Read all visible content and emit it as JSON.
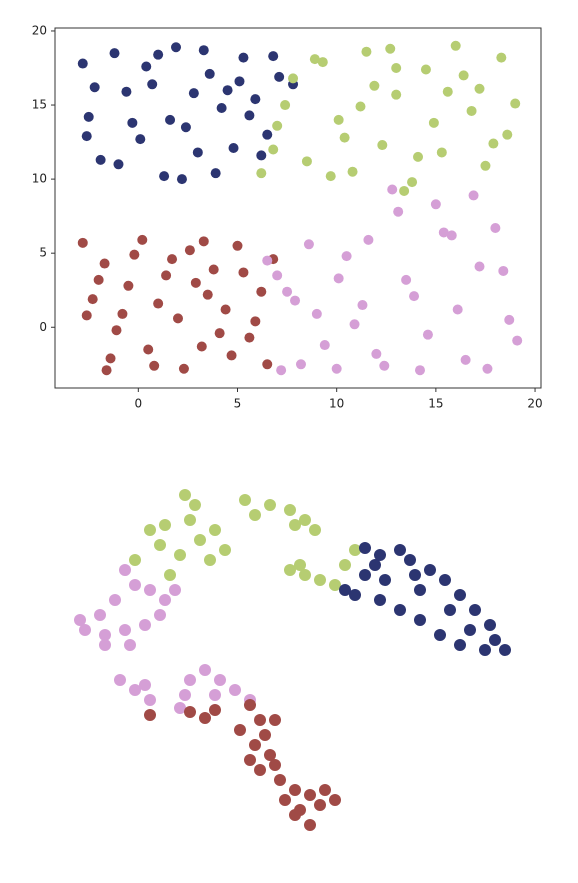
{
  "chart_data": [
    {
      "type": "scatter",
      "axes": true,
      "xlim": [
        -4.2,
        20.3
      ],
      "ylim": [
        -4.1,
        20.2
      ],
      "xticks": [
        0,
        5,
        10,
        15,
        20
      ],
      "yticks": [
        0,
        5,
        10,
        15,
        20
      ],
      "series": [
        {
          "color": "#2c3571",
          "x": [
            -2.8,
            -2.5,
            -1.9,
            -1.2,
            -0.6,
            0.1,
            0.7,
            1.3,
            1.9,
            2.4,
            3.0,
            3.6,
            4.2,
            4.8,
            5.3,
            5.9,
            6.5,
            7.1,
            -2.2,
            -1.0,
            0.4,
            1.6,
            2.8,
            3.9,
            5.1,
            6.2,
            -2.6,
            -0.3,
            1.0,
            2.2,
            3.3,
            4.5,
            5.6,
            6.8,
            7.8
          ],
          "y": [
            17.8,
            14.2,
            11.3,
            18.5,
            15.9,
            12.7,
            16.4,
            10.2,
            18.9,
            13.5,
            11.8,
            17.1,
            14.8,
            12.1,
            18.2,
            15.4,
            13.0,
            16.9,
            16.2,
            11.0,
            17.6,
            14.0,
            15.8,
            10.4,
            16.6,
            11.6,
            12.9,
            13.8,
            18.4,
            10.0,
            18.7,
            16.0,
            14.3,
            18.3,
            16.4
          ]
        },
        {
          "color": "#b6cd72",
          "x": [
            6.2,
            7.0,
            7.8,
            8.5,
            9.3,
            10.1,
            10.8,
            11.5,
            12.3,
            13.0,
            13.8,
            14.5,
            15.3,
            16.0,
            16.8,
            17.5,
            18.3,
            19.0,
            7.4,
            8.9,
            10.4,
            11.9,
            13.4,
            14.9,
            16.4,
            17.9,
            9.7,
            12.7,
            15.6,
            18.6,
            6.8,
            11.2,
            14.1,
            17.2,
            13.0
          ],
          "y": [
            10.4,
            13.6,
            16.8,
            11.2,
            17.9,
            14.0,
            10.5,
            18.6,
            12.3,
            15.7,
            9.8,
            17.4,
            11.8,
            19.0,
            14.6,
            10.9,
            18.2,
            15.1,
            15.0,
            18.1,
            12.8,
            16.3,
            9.2,
            13.8,
            17.0,
            12.4,
            10.2,
            18.8,
            15.9,
            13.0,
            12.0,
            14.9,
            11.5,
            16.1,
            17.5
          ]
        },
        {
          "color": "#a04a46",
          "x": [
            -2.8,
            -2.3,
            -1.7,
            -1.1,
            -0.5,
            0.2,
            0.8,
            1.4,
            2.0,
            2.6,
            3.2,
            3.8,
            4.4,
            5.0,
            5.6,
            6.2,
            6.8,
            -2.6,
            -1.4,
            -0.2,
            1.0,
            2.3,
            3.5,
            4.7,
            5.9,
            -2.0,
            -0.8,
            0.5,
            1.7,
            2.9,
            4.1,
            5.3,
            6.5,
            3.3,
            -1.6
          ],
          "y": [
            5.7,
            1.9,
            4.3,
            -0.2,
            2.8,
            5.9,
            -2.6,
            3.5,
            0.6,
            5.2,
            -1.3,
            3.9,
            1.2,
            5.5,
            -0.7,
            2.4,
            4.6,
            0.8,
            -2.1,
            4.9,
            1.6,
            -2.8,
            2.2,
            -1.9,
            0.4,
            3.2,
            0.9,
            -1.5,
            4.6,
            3.0,
            -0.4,
            3.7,
            -2.5,
            5.8,
            -2.9
          ]
        },
        {
          "color": "#d59fd6",
          "x": [
            6.5,
            7.2,
            7.9,
            8.6,
            9.4,
            10.1,
            10.9,
            11.6,
            12.4,
            13.1,
            13.9,
            14.6,
            15.4,
            16.1,
            16.9,
            17.6,
            18.4,
            19.1,
            7.5,
            9.0,
            10.5,
            12.0,
            13.5,
            15.0,
            16.5,
            18.0,
            8.2,
            11.3,
            14.2,
            17.2,
            12.8,
            15.8,
            18.7,
            7.0,
            10.0
          ],
          "y": [
            4.5,
            -2.9,
            1.8,
            5.6,
            -1.2,
            3.3,
            0.2,
            5.9,
            -2.6,
            7.8,
            2.1,
            -0.5,
            6.4,
            1.2,
            8.9,
            -2.8,
            3.8,
            -0.9,
            2.4,
            0.9,
            4.8,
            -1.8,
            3.2,
            8.3,
            -2.2,
            6.7,
            -2.5,
            1.5,
            -2.9,
            4.1,
            9.3,
            6.2,
            0.5,
            3.5,
            -2.8
          ]
        }
      ]
    },
    {
      "type": "scatter",
      "axes": false,
      "xlim": [
        0,
        460
      ],
      "ylim": [
        0,
        370
      ],
      "series": [
        {
          "color": "#b6cd72",
          "x": [
            90,
            105,
            100,
            125,
            135,
            130,
            140,
            155,
            165,
            150,
            120,
            185,
            195,
            210,
            230,
            245,
            255,
            235,
            230,
            245,
            260,
            275,
            285,
            295,
            240,
            75,
            110
          ],
          "y": [
            310,
            315,
            295,
            345,
            335,
            320,
            300,
            310,
            290,
            280,
            285,
            340,
            325,
            335,
            330,
            320,
            310,
            315,
            270,
            265,
            260,
            255,
            275,
            290,
            275,
            280,
            265
          ]
        },
        {
          "color": "#2c3571",
          "x": [
            305,
            320,
            340,
            350,
            370,
            385,
            400,
            415,
            430,
            445,
            425,
            400,
            380,
            360,
            340,
            320,
            295,
            285,
            305,
            325,
            355,
            360,
            390,
            410,
            435,
            315
          ],
          "y": [
            292,
            285,
            290,
            280,
            270,
            260,
            245,
            230,
            215,
            190,
            190,
            195,
            205,
            220,
            230,
            240,
            245,
            250,
            265,
            260,
            265,
            250,
            230,
            210,
            200,
            275
          ]
        },
        {
          "color": "#d59fd6",
          "x": [
            65,
            75,
            90,
            105,
            115,
            100,
            85,
            65,
            45,
            25,
            20,
            40,
            55,
            45,
            70,
            60,
            75,
            90,
            85,
            125,
            130,
            145,
            160,
            175,
            190,
            155,
            120
          ],
          "y": [
            270,
            255,
            250,
            240,
            250,
            225,
            215,
            210,
            205,
            210,
            220,
            225,
            240,
            195,
            195,
            160,
            150,
            140,
            155,
            145,
            160,
            170,
            160,
            150,
            140,
            145,
            132
          ]
        },
        {
          "color": "#a04a46",
          "x": [
            90,
            130,
            145,
            155,
            190,
            200,
            205,
            195,
            210,
            200,
            220,
            215,
            235,
            250,
            265,
            275,
            260,
            240,
            250,
            235,
            225,
            190,
            180,
            215
          ],
          "y": [
            125,
            128,
            122,
            130,
            135,
            120,
            105,
            95,
            85,
            70,
            60,
            75,
            50,
            45,
            50,
            40,
            35,
            30,
            15,
            25,
            40,
            80,
            110,
            120
          ]
        }
      ]
    }
  ]
}
